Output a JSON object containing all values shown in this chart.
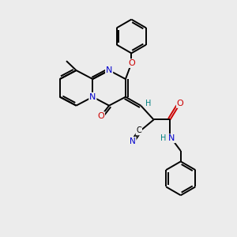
{
  "background_color": "#ececec",
  "bond_color": "#000000",
  "atom_colors": {
    "N": "#0000cc",
    "O": "#cc0000",
    "H": "#008080",
    "C": "#000000"
  },
  "figsize": [
    3.0,
    3.0
  ],
  "dpi": 100
}
